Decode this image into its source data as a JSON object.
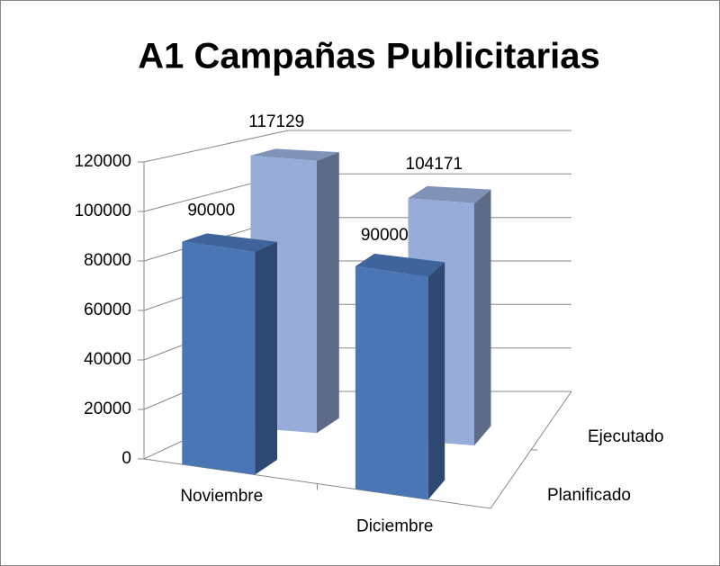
{
  "chart_data": {
    "type": "bar3d",
    "title": "A1 Campañas Publicitarias",
    "categories": [
      "Noviembre",
      "Diciembre"
    ],
    "series": [
      {
        "name": "Planificado",
        "color": "#4a76b6",
        "values": [
          90000,
          90000
        ]
      },
      {
        "name": "Ejecutado",
        "color": "#97acd8",
        "values": [
          117129,
          104171
        ]
      }
    ],
    "ylim": [
      0,
      120000
    ],
    "yticks": [
      0,
      20000,
      40000,
      60000,
      80000,
      100000,
      120000
    ],
    "grid": true
  }
}
